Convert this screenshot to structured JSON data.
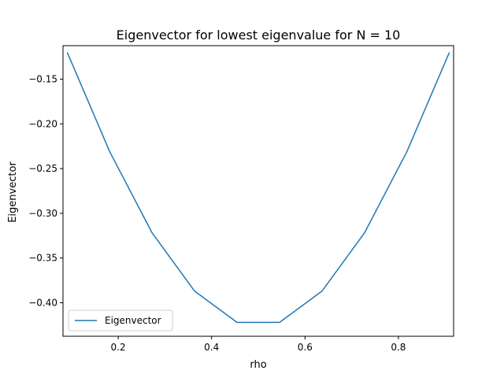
{
  "chart_data": {
    "type": "line",
    "title": "Eigenvector for lowest eigenvalue for N = 10",
    "xlabel": "rho",
    "ylabel": "Eigenvector",
    "xlim": [
      0.0818,
      0.9182
    ],
    "ylim": [
      -0.4375,
      -0.1125
    ],
    "xticks": [
      0.2,
      0.4,
      0.6,
      0.8
    ],
    "xtick_labels": [
      "0.2",
      "0.4",
      "0.6",
      "0.8"
    ],
    "yticks": [
      -0.15,
      -0.2,
      -0.25,
      -0.3,
      -0.35,
      -0.4
    ],
    "ytick_labels": [
      "−0.15",
      "−0.20",
      "−0.25",
      "−0.30",
      "−0.35",
      "−0.40"
    ],
    "grid": false,
    "legend_position": "lower-left",
    "series": [
      {
        "name": "Eigenvector",
        "color": "#1f77b4",
        "x": [
          0.0909,
          0.1818,
          0.2727,
          0.3636,
          0.4545,
          0.5455,
          0.6364,
          0.7273,
          0.8182,
          0.9091
        ],
        "y": [
          -0.12,
          -0.231,
          -0.322,
          -0.387,
          -0.422,
          -0.422,
          -0.387,
          -0.322,
          -0.231,
          -0.12
        ]
      }
    ]
  }
}
